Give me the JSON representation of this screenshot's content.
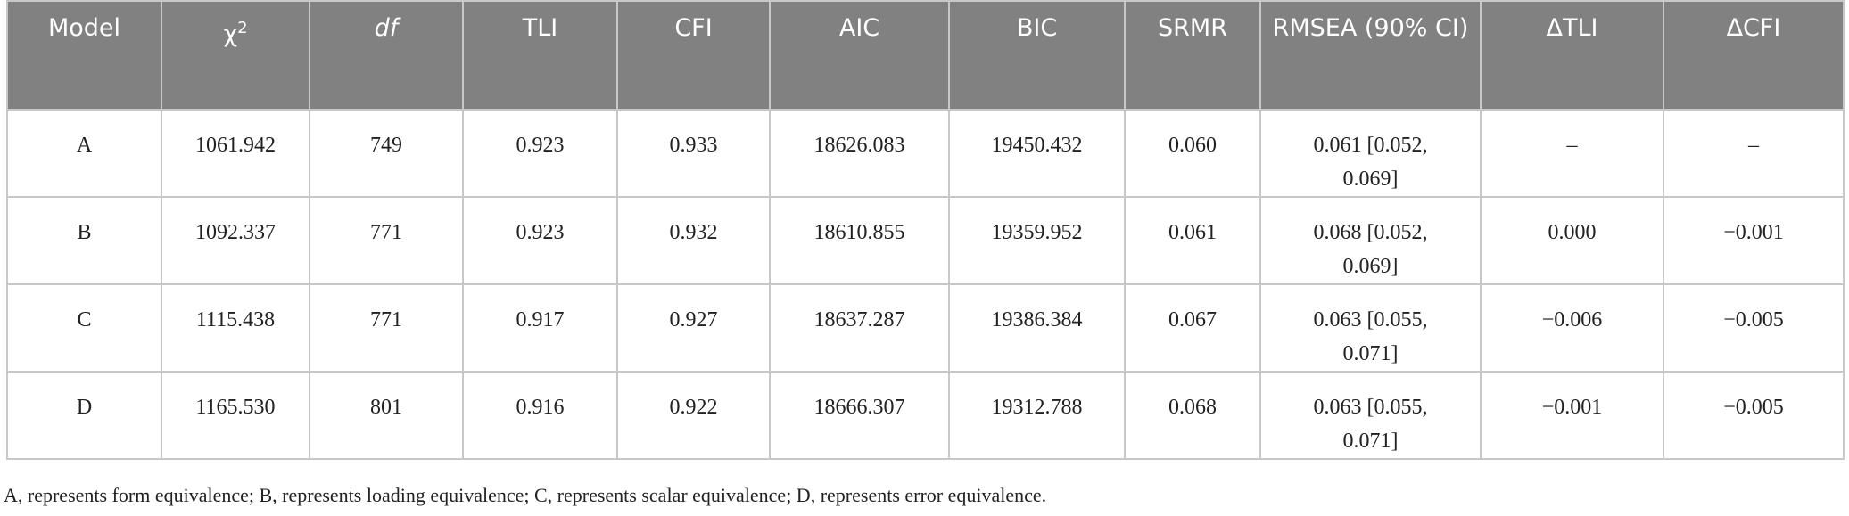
{
  "table": {
    "header": [
      "Model",
      {
        "text": "χ",
        "sup": "2"
      },
      "df",
      "TLI",
      "CFI",
      "AIC",
      "BIC",
      "SRMR",
      "RMSEA (90% CI)",
      "ΔTLI",
      "ΔCFI"
    ],
    "rows": [
      [
        "A",
        "1061.942",
        "749",
        "0.923",
        "0.933",
        "18626.083",
        "19450.432",
        "0.060",
        "0.061 [0.052, 0.069]",
        "–",
        "–"
      ],
      [
        "B",
        "1092.337",
        "771",
        "0.923",
        "0.932",
        "18610.855",
        "19359.952",
        "0.061",
        "0.068 [0.052, 0.069]",
        "0.000",
        "−0.001"
      ],
      [
        "C",
        "1115.438",
        "771",
        "0.917",
        "0.927",
        "18637.287",
        "19386.384",
        "0.067",
        "0.063 [0.055, 0.071]",
        "−0.006",
        "−0.005"
      ],
      [
        "D",
        "1165.530",
        "801",
        "0.916",
        "0.922",
        "18666.307",
        "19312.788",
        "0.068",
        "0.063 [0.055, 0.071]",
        "−0.001",
        "−0.005"
      ]
    ]
  },
  "footnote": "A, represents form equivalence; B, represents loading equivalence; C, represents scalar equivalence; D, represents error equivalence."
}
